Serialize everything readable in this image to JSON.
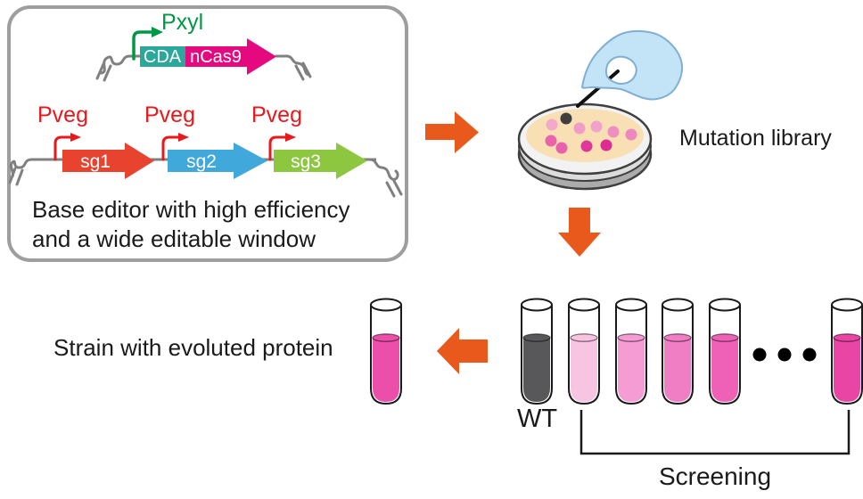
{
  "colors": {
    "arrow_orange": "#E8591B",
    "box_border": "#9E9E9E",
    "dna_gray": "#808080",
    "pxyl_green": "#009845",
    "pveg_red": "#E8191C",
    "cda_teal": "#2BA79B",
    "ncas9_magenta": "#E5097F",
    "sg1_red": "#E8432E",
    "sg2_blue": "#41A8DC",
    "sg3_green": "#8DC63F",
    "agar_cream": "#F8DFB4",
    "dish_rim_light": "#F2F2F2",
    "dish_rim_mid": "#DCDCDC",
    "dish_rim_dark": "#ABABAB",
    "hand_blue": "#C3E3F7",
    "needle_black": "#111111",
    "wt_gray": "#58585A",
    "text_black": "#1A1A1A"
  },
  "construct_box": {
    "pxyl_label": "Pxyl",
    "cda_label": "CDA",
    "ncas9_label": "nCas9",
    "pveg_labels": [
      "Pveg",
      "Pveg",
      "Pveg"
    ],
    "sg_labels": [
      "sg1",
      "sg2",
      "sg3"
    ],
    "caption_line1": "Base editor with high efficiency",
    "caption_line2": "and a wide editable window"
  },
  "mutation_library": {
    "label": "Mutation library",
    "colony_colors": [
      "#F4A8CB",
      "#3E3E3E",
      "#F09CC6",
      "#F0A3CA",
      "#EE8FC0",
      "#EE87BE",
      "#EA64AC",
      "#E960AB",
      "#E0379B",
      "#DF2B94"
    ]
  },
  "screening": {
    "wt_label": "WT",
    "bracket_label": "Screening",
    "tube_fills": [
      "#58585A",
      "#F7C4E1",
      "#F49CD3",
      "#F07EC5",
      "#EE61B7",
      "#E945A5"
    ],
    "ellipsis_dot_count": 3
  },
  "result": {
    "label": "Strain with evoluted protein",
    "tube_fill": "#EC4FAA"
  }
}
